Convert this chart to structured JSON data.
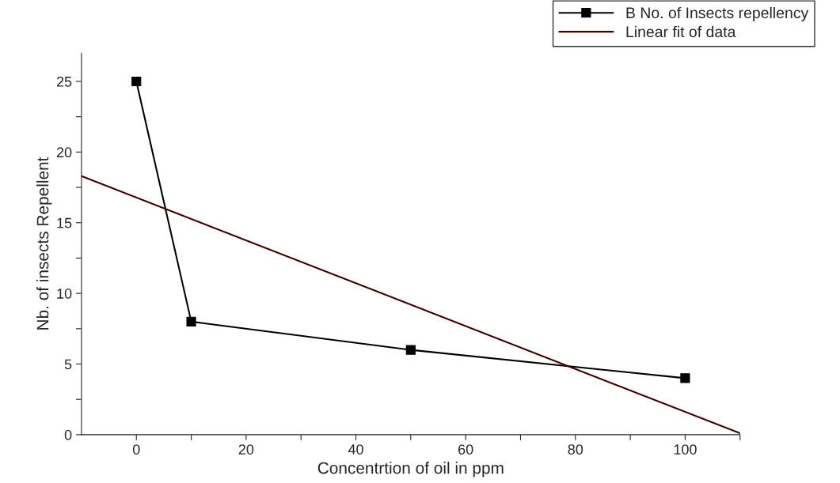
{
  "chart_data": {
    "type": "line",
    "xlabel": "Concentrtion of oil in ppm",
    "ylabel": "Nb. of insects Repellent",
    "xlim": [
      -10,
      110
    ],
    "ylim": [
      0,
      27
    ],
    "xticks": [
      0,
      {
        "value": 10,
        "label": null
      },
      20,
      {
        "value": 30,
        "label": null
      },
      40,
      {
        "value": 50,
        "label": null
      },
      60,
      {
        "value": 70,
        "label": null
      },
      80,
      {
        "value": 90,
        "label": null
      },
      100,
      {
        "value": 110,
        "label": null
      }
    ],
    "yticks": [
      0,
      {
        "value": 2.5,
        "label": null
      },
      5,
      {
        "value": 7.5,
        "label": null
      },
      10,
      {
        "value": 12.5,
        "label": null
      },
      15,
      {
        "value": 17.5,
        "label": null
      },
      20,
      {
        "value": 22.5,
        "label": null
      },
      25
    ],
    "grid": false,
    "legend": "top right",
    "series": [
      {
        "name": "B No. of Insects repellency",
        "color": "#000000",
        "x": [
          0,
          10,
          50,
          100
        ],
        "values": [
          25,
          8,
          6,
          4
        ],
        "marker": "square",
        "line_style": "solid"
      },
      {
        "name": "Linear fit of data",
        "color": "#400000",
        "x": [
          -10,
          110
        ],
        "values": [
          18.3,
          0.1
        ],
        "marker": "none",
        "line_style": "solid"
      }
    ]
  }
}
